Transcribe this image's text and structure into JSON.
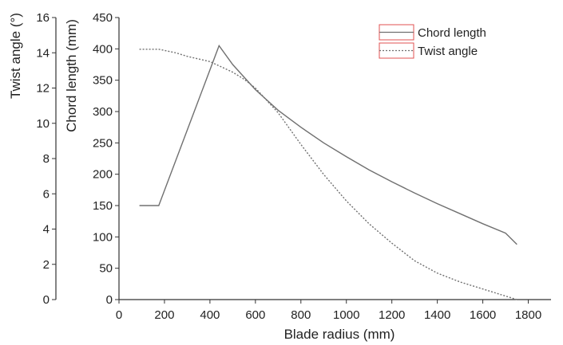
{
  "chart_data": {
    "type": "line",
    "xlabel": "Blade radius (mm)",
    "xlim": [
      0,
      1900
    ],
    "xticks": [
      0,
      200,
      400,
      600,
      800,
      1000,
      1200,
      1400,
      1600,
      1800
    ],
    "y_left_outer": {
      "label": "Twist angle (°)",
      "lim": [
        0,
        16
      ],
      "ticks": [
        0,
        2,
        4,
        6,
        8,
        10,
        12,
        14,
        16
      ]
    },
    "y_left_inner": {
      "label": "Chord length (mm)",
      "lim": [
        0,
        450
      ],
      "ticks": [
        0,
        50,
        100,
        150,
        200,
        250,
        300,
        350,
        400,
        450
      ]
    },
    "series": [
      {
        "name": "Chord length",
        "axis": "y_left_inner",
        "style": "solid",
        "color": "#707070",
        "x": [
          90,
          175,
          440,
          500,
          600,
          700,
          800,
          900,
          1000,
          1100,
          1200,
          1300,
          1400,
          1500,
          1600,
          1700,
          1750
        ],
        "y": [
          150,
          150,
          405,
          375,
          335,
          302,
          275,
          250,
          228,
          207,
          188,
          170,
          153,
          137,
          121,
          106,
          88
        ]
      },
      {
        "name": "Twist angle",
        "axis": "y_left_outer",
        "style": "dotted",
        "color": "#707070",
        "x": [
          90,
          175,
          250,
          300,
          400,
          450,
          500,
          550,
          600,
          700,
          800,
          900,
          1000,
          1100,
          1200,
          1300,
          1400,
          1500,
          1600,
          1700,
          1750
        ],
        "y": [
          14.2,
          14.2,
          14.0,
          13.8,
          13.5,
          13.2,
          12.9,
          12.5,
          12.0,
          10.6,
          8.8,
          7.1,
          5.6,
          4.3,
          3.2,
          2.2,
          1.5,
          1.0,
          0.6,
          0.2,
          0.0
        ]
      }
    ],
    "legend": {
      "placement": "top-right",
      "entries": [
        "Chord length",
        "Twist angle"
      ]
    },
    "grid": false
  }
}
